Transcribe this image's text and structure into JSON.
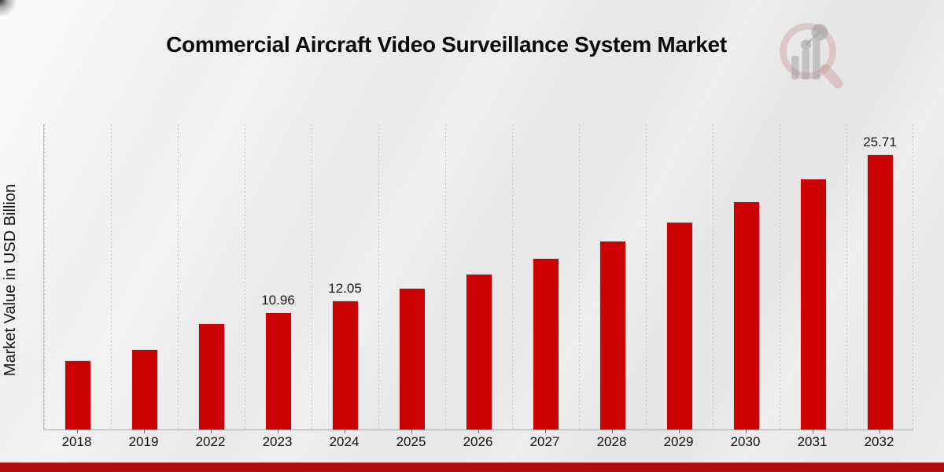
{
  "title": "Commercial Aircraft Video Surveillance System Market",
  "y_axis_label": "Market Value in USD Billion",
  "chart_data": {
    "type": "bar",
    "title": "Commercial Aircraft Video Surveillance System Market",
    "xlabel": "",
    "ylabel": "Market Value in USD Billion",
    "categories": [
      "2018",
      "2019",
      "2022",
      "2023",
      "2024",
      "2025",
      "2026",
      "2027",
      "2028",
      "2029",
      "2030",
      "2031",
      "2032"
    ],
    "values": [
      6.47,
      7.53,
      9.95,
      10.96,
      12.05,
      13.25,
      14.57,
      16.02,
      17.61,
      19.36,
      21.29,
      23.4,
      25.71
    ],
    "bar_labels": {
      "2023": "10.96",
      "2024": "12.05",
      "2032": "25.71"
    },
    "ylim": [
      0,
      28.5
    ],
    "grid": "vertical-dashed",
    "legend": "none",
    "bar_color": "#cc0202"
  },
  "colors": {
    "bar": "#cc0202",
    "bar_edge": "#dedede",
    "footer_band": "#b40d0d",
    "background": "#e9e9e9",
    "grid_line": "#c3c3c3",
    "axis_line": "#a8a8a8",
    "text": "#101010"
  },
  "logo_name": "market-research-magnifier-watermark"
}
